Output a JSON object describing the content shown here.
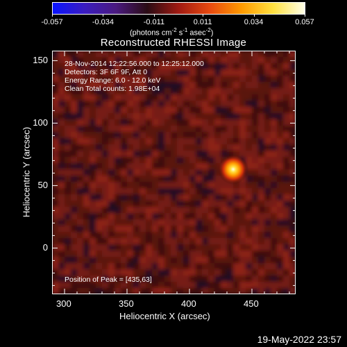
{
  "colorbar": {
    "tick_labels": [
      "-0.057",
      "-0.034",
      "-0.011",
      "0.011",
      "0.034",
      "0.057"
    ],
    "tick_values": [
      -0.057,
      -0.034,
      -0.011,
      0.011,
      0.034,
      0.057
    ],
    "unit_main": "(photons cm",
    "unit_sup1": "-2",
    "unit_mid": " s",
    "unit_sup2": "-1",
    "unit_mid2": " asec",
    "unit_sup3": "-2",
    "unit_end": ")",
    "colors": [
      "#0a14ff",
      "#3a1cc0",
      "#4a1a80",
      "#2a0c14",
      "#a01a12",
      "#e84a10",
      "#ff9a00",
      "#ffe040",
      "#ffffe8"
    ]
  },
  "plot": {
    "title": "Reconstructed RHESSI Image",
    "annotations": [
      "28-Nov-2014 12:22:56.000 to 12:25:12.000",
      "Detectors: 3F 6F 9F, Att 0",
      "Energy Range: 6.0 - 12.0 keV",
      "Clean     Total counts: 1.98E+04"
    ],
    "peak_label": "Position of Peak = [435,63]",
    "xlabel": "Heliocentric X (arcsec)",
    "ylabel": "Heliocentric Y (arcsec)",
    "x_ticks": [
      "300",
      "350",
      "400",
      "450"
    ],
    "x_tick_values": [
      300,
      350,
      400,
      450
    ],
    "y_ticks": [
      "0",
      "50",
      "100",
      "150"
    ],
    "y_tick_values": [
      0,
      50,
      100,
      150
    ],
    "xlim": [
      290,
      485
    ],
    "ylim": [
      -37,
      158
    ],
    "peak": {
      "x": 435,
      "y": 63
    }
  },
  "footer": {
    "timestamp": "19-May-2022 23:57"
  }
}
